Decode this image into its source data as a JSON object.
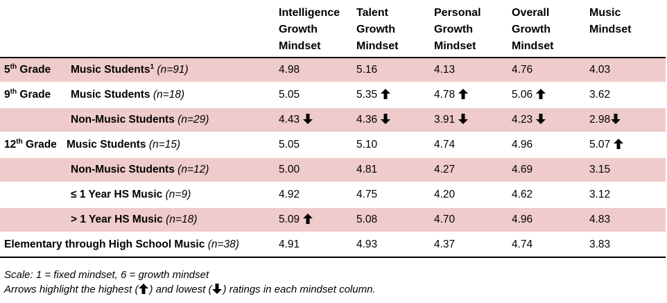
{
  "columns": [
    "Intelligence Growth Mindset",
    "Talent Growth Mindset",
    "Personal Growth Mindset",
    "Overall Growth Mindset",
    "Music Mindset"
  ],
  "column_lines": [
    [
      "Intelligence",
      "Growth",
      "Mindset"
    ],
    [
      "Talent",
      "Growth",
      "Mindset"
    ],
    [
      "Personal",
      "Growth",
      "Mindset"
    ],
    [
      "Overall",
      "Growth",
      "Mindset"
    ],
    [
      "Music",
      "Mindset"
    ]
  ],
  "rows": [
    {
      "grade_num": "5",
      "grade_sup": "th",
      "grade_word": " Grade",
      "group": "Music Students",
      "group_sup": "1",
      "n": "(n=91)",
      "values": [
        "4.98",
        "5.16",
        "4.13",
        "4.76",
        "4.03"
      ],
      "arrows": [
        "",
        "",
        "",
        "",
        ""
      ]
    },
    {
      "grade_num": "9",
      "grade_sup": "th",
      "grade_word": " Grade",
      "group": "Music Students",
      "group_sup": "",
      "n": "(n=18)",
      "values": [
        "5.05",
        "5.35",
        "4.78",
        "5.06",
        "3.62"
      ],
      "arrows": [
        "",
        "up",
        "up",
        "up",
        ""
      ]
    },
    {
      "grade_num": "",
      "grade_sup": "",
      "grade_word": "",
      "group": "Non-Music Students",
      "group_sup": "",
      "n": "(n=29)",
      "values": [
        "4.43",
        "4.36",
        "3.91",
        "4.23",
        "2.98"
      ],
      "arrows": [
        "down",
        "down",
        "down",
        "down",
        "down"
      ]
    },
    {
      "grade_num": "12",
      "grade_sup": "th",
      "grade_word": " Grade",
      "group": "Music Students",
      "group_sup": "",
      "n": "(n=15)",
      "values": [
        "5.05",
        "5.10",
        "4.74",
        "4.96",
        "5.07"
      ],
      "arrows": [
        "",
        "",
        "",
        "",
        "up"
      ]
    },
    {
      "grade_num": "",
      "grade_sup": "",
      "grade_word": "",
      "group": "Non-Music Students",
      "group_sup": "",
      "n": "(n=12)",
      "values": [
        "5.00",
        "4.81",
        "4.27",
        "4.69",
        "3.15"
      ],
      "arrows": [
        "",
        "",
        "",
        "",
        ""
      ]
    },
    {
      "grade_num": "",
      "grade_sup": "",
      "grade_word": "",
      "group": "≤ 1 Year HS Music",
      "group_sup": "",
      "n": "(n=9)",
      "values": [
        "4.92",
        "4.75",
        "4.20",
        "4.62",
        "3.12"
      ],
      "arrows": [
        "",
        "",
        "",
        "",
        ""
      ]
    },
    {
      "grade_num": "",
      "grade_sup": "",
      "grade_word": "",
      "group": "> 1 Year HS Music",
      "group_sup": "",
      "n": "(n=18)",
      "values": [
        "5.09",
        "5.08",
        "4.70",
        "4.96",
        "4.83"
      ],
      "arrows": [
        "up",
        "",
        "",
        "",
        ""
      ]
    },
    {
      "grade_num": "",
      "grade_sup": "",
      "grade_word": "",
      "group": "Elementary through High School Music",
      "group_sup": "",
      "n": "(n=38)",
      "values": [
        "4.91",
        "4.93",
        "4.37",
        "4.74",
        "3.83"
      ],
      "arrows": [
        "",
        "",
        "",
        "",
        ""
      ],
      "span": true
    }
  ],
  "notes": {
    "scale": "Scale: 1 = fixed mindset, 6 = growth mindset",
    "arrows_before": "Arrows highlight the highest (",
    "arrows_middle": ") and lowest (",
    "arrows_after": ") ratings in each mindset column."
  },
  "icons": {
    "up": "arrow-up-icon",
    "down": "arrow-down-icon"
  },
  "colors": {
    "shade": "#efcbcb",
    "text": "#000000"
  }
}
